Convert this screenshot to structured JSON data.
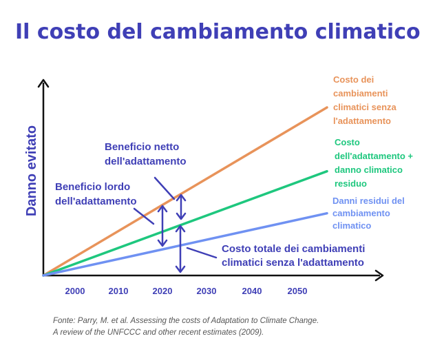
{
  "chart_data": {
    "type": "line",
    "title": "Il costo del cambiamento climatico",
    "xlabel": "",
    "ylabel": "Danno evitato",
    "x_ticks": [
      "2000",
      "2010",
      "2020",
      "2030",
      "2040",
      "2050"
    ],
    "grid": false,
    "legend": "inline-right",
    "series": [
      {
        "name": "Costo dei cambiamenti climatici senza l'adattamento",
        "name_lines": [
          "Costo dei",
          "cambiamenti",
          "climatici senza",
          "l'adattamento"
        ],
        "color": "#e8935a",
        "x": [
          1993,
          2055
        ],
        "y": [
          0,
          100
        ]
      },
      {
        "name": "Costo dell'adattamento + danno climatico residuo",
        "name_lines": [
          "Costo",
          "dell'adattamento +",
          "danno climatico",
          "residuo"
        ],
        "color": "#1ec77e",
        "x": [
          1993,
          2055
        ],
        "y": [
          0,
          62
        ]
      },
      {
        "name": "Danni residui del cambiamento climatico",
        "name_lines": [
          "Danni residui del",
          "cambiamento",
          "climatico"
        ],
        "color": "#6f91f2",
        "x": [
          1993,
          2055
        ],
        "y": [
          0,
          37
        ]
      }
    ],
    "annotations": [
      {
        "lines": [
          "Beneficio netto",
          "dell'adattamento"
        ],
        "color": "#3f3fb6"
      },
      {
        "lines": [
          "Beneficio lordo",
          "dell'adattamento"
        ],
        "color": "#3f3fb6"
      },
      {
        "lines": [
          "Costo totale dei cambiamenti",
          "climatici senza l'adattamento"
        ],
        "color": "#3f3fb6"
      }
    ],
    "source": [
      "Fonte: Parry, M. et al. Assessing the costs of Adaptation to Climate Change.",
      "A review of the UNFCCC and other recent estimates (2009)."
    ]
  },
  "colors": {
    "title": "#3f3fb6",
    "axis": "#111111",
    "ticks": "#3f3fb6",
    "source": "#555555"
  }
}
